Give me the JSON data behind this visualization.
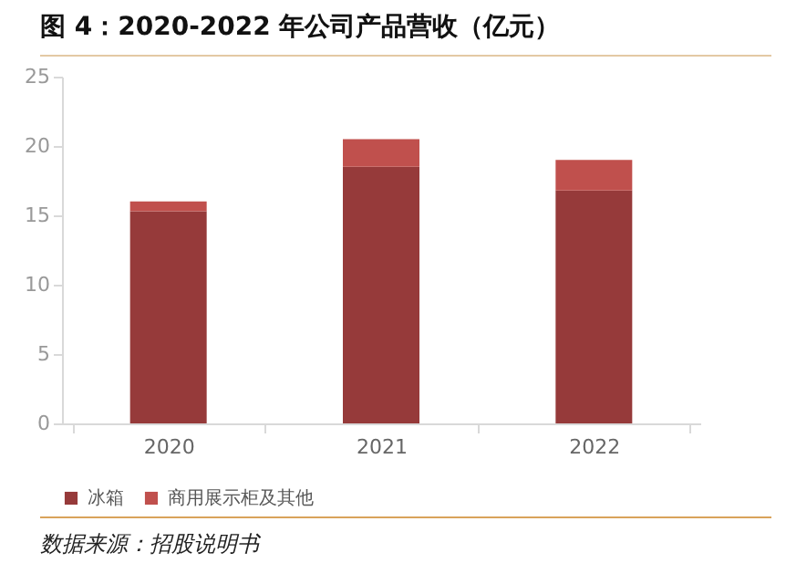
{
  "chart_data": {
    "type": "bar",
    "title": "图 4：2020-2022 年公司产品营收（亿元）",
    "categories": [
      "2020",
      "2021",
      "2022"
    ],
    "stacked": true,
    "series": [
      {
        "name": "冰箱",
        "color": "#963a3a",
        "values": [
          15.3,
          18.5,
          16.8
        ]
      },
      {
        "name": "商用展示柜及其他",
        "color": "#c0504d",
        "values": [
          0.7,
          2.0,
          2.2
        ]
      }
    ],
    "ylim": [
      0,
      25
    ],
    "yticks": [
      0,
      5,
      10,
      15,
      20,
      25
    ],
    "grid": false,
    "legend": "bottom",
    "annotations": [
      "数据来源：招股说明书"
    ]
  }
}
